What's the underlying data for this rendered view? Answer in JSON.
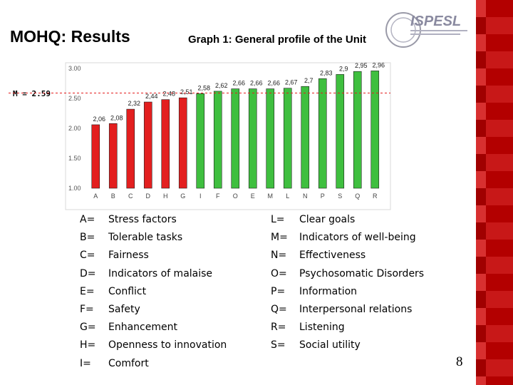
{
  "slide": {
    "title": "MOHQ: Results",
    "subtitle": "Graph 1: General profile of the Unit",
    "mean_label": "M = 2.59",
    "page_number": "8"
  },
  "colors": {
    "bar_low": "#e31f1f",
    "bar_high": "#3fbf3f",
    "mean_line": "#e31f1f",
    "stripe": "#b30000"
  },
  "logo": {
    "icon": "ispesl-logo",
    "text": "ISPESL"
  },
  "chart_data": {
    "type": "bar",
    "title": "Graph 1: General profile of the Unit",
    "categories": [
      "A",
      "B",
      "C",
      "D",
      "H",
      "G",
      "I",
      "F",
      "O",
      "E",
      "M",
      "L",
      "N",
      "P",
      "S",
      "Q",
      "R"
    ],
    "values": [
      2.06,
      2.08,
      2.32,
      2.44,
      2.48,
      2.51,
      2.58,
      2.62,
      2.66,
      2.66,
      2.66,
      2.67,
      2.7,
      2.83,
      2.9,
      2.95,
      2.96
    ],
    "value_labels": [
      "2,06",
      "2,08",
      "2,32",
      "2,44",
      "2,48",
      "2,51",
      "2,58",
      "2,62",
      "2,66",
      "2,66",
      "2,66",
      "2,67",
      "2,7",
      "2,83",
      "2,9",
      "2,95",
      "2,96"
    ],
    "bar_colors": [
      "red",
      "red",
      "red",
      "red",
      "red",
      "red",
      "green",
      "green",
      "green",
      "green",
      "green",
      "green",
      "green",
      "green",
      "green",
      "green",
      "green"
    ],
    "ylim": [
      1.0,
      3.0
    ],
    "yticks": [
      "1.00",
      "1.50",
      "2.00",
      "2.50",
      "3.00"
    ],
    "ytick_values": [
      1.0,
      1.5,
      2.0,
      2.5,
      3.0
    ],
    "mean_line": 2.59,
    "grid": false,
    "legend": "none"
  },
  "legend": {
    "left": [
      {
        "key": "A=",
        "label": "Stress factors"
      },
      {
        "key": "B=",
        "label": "Tolerable tasks"
      },
      {
        "key": "C=",
        "label": "Fairness"
      },
      {
        "key": "D=",
        "label": "Indicators of malaise"
      },
      {
        "key": "E=",
        "label": "Conflict"
      },
      {
        "key": "F=",
        "label": "Safety"
      },
      {
        "key": "G=",
        "label": "Enhancement"
      },
      {
        "key": "H=",
        "label": "Openness to innovation"
      },
      {
        "key": "I=",
        "label": "Comfort"
      }
    ],
    "right": [
      {
        "key": "L=",
        "label": "Clear goals"
      },
      {
        "key": "M=",
        "label": "Indicators of well-being"
      },
      {
        "key": "N=",
        "label": "Effectiveness"
      },
      {
        "key": "O=",
        "label": "Psychosomatic Disorders"
      },
      {
        "key": "P=",
        "label": "Information"
      },
      {
        "key": "Q=",
        "label": "Interpersonal relations"
      },
      {
        "key": "R=",
        "label": "Listening"
      },
      {
        "key": "S=",
        "label": "Social utility"
      }
    ]
  }
}
